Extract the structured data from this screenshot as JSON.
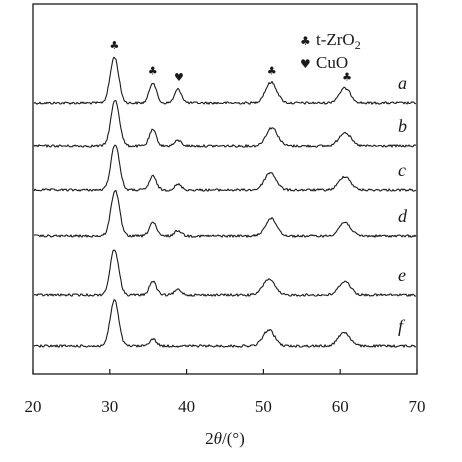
{
  "chart_data": {
    "type": "line",
    "title": "",
    "xlabel_prefix": "2",
    "xlabel_theta": "θ",
    "xlabel_suffix": "/(°)",
    "ylabel": "",
    "xlim": [
      20,
      70
    ],
    "xticks": [
      "20",
      "30",
      "40",
      "50",
      "60",
      "70"
    ],
    "yticks_shown": false,
    "stacked_offset": true,
    "grid": false,
    "legend": {
      "placement": "top-right",
      "entries": [
        {
          "symbol": "♣",
          "label_main": "t-ZrO",
          "label_sub": "2"
        },
        {
          "symbol": "♥",
          "label_main": "CuO",
          "label_sub": ""
        }
      ]
    },
    "annotation_markers": [
      {
        "x": 30.6,
        "symbol": "♣"
      },
      {
        "x": 35.6,
        "symbol": "♣"
      },
      {
        "x": 39.0,
        "symbol": "♥"
      },
      {
        "x": 51.1,
        "symbol": "♣"
      },
      {
        "x": 60.9,
        "symbol": "♣"
      }
    ],
    "series": [
      {
        "name": "a",
        "peaks": [
          [
            30.6,
            1.0
          ],
          [
            35.6,
            0.45
          ],
          [
            38.9,
            0.3
          ],
          [
            51.0,
            0.45
          ],
          [
            60.6,
            0.32
          ]
        ]
      },
      {
        "name": "b",
        "peaks": [
          [
            30.7,
            1.0
          ],
          [
            35.6,
            0.35
          ],
          [
            38.9,
            0.12
          ],
          [
            51.1,
            0.4
          ],
          [
            60.6,
            0.3
          ]
        ]
      },
      {
        "name": "c",
        "peaks": [
          [
            30.7,
            1.0
          ],
          [
            35.6,
            0.3
          ],
          [
            38.9,
            0.12
          ],
          [
            50.9,
            0.38
          ],
          [
            60.6,
            0.3
          ]
        ]
      },
      {
        "name": "d",
        "peaks": [
          [
            30.7,
            1.0
          ],
          [
            35.6,
            0.3
          ],
          [
            38.9,
            0.12
          ],
          [
            51.0,
            0.38
          ],
          [
            60.6,
            0.3
          ]
        ]
      },
      {
        "name": "e",
        "peaks": [
          [
            30.6,
            1.0
          ],
          [
            35.6,
            0.3
          ],
          [
            38.9,
            0.12
          ],
          [
            50.7,
            0.35
          ],
          [
            60.6,
            0.3
          ]
        ]
      },
      {
        "name": "f",
        "peaks": [
          [
            30.6,
            1.0
          ],
          [
            35.6,
            0.15
          ],
          [
            50.7,
            0.35
          ],
          [
            60.5,
            0.3
          ]
        ]
      }
    ]
  }
}
